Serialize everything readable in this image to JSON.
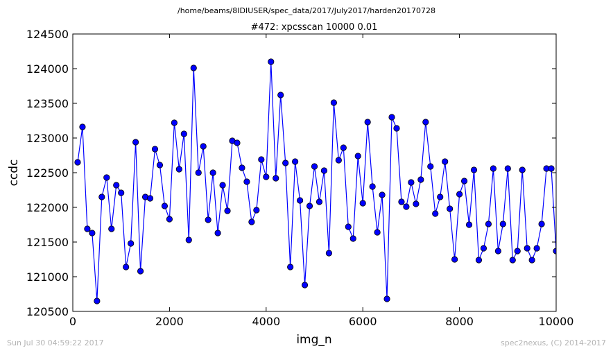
{
  "header": {
    "path": "/home/beams/8IDIUSER/spec_data/2017/July2017/harden20170728",
    "title": "#472: xpcsscan 10000 0.01"
  },
  "footer": {
    "timestamp": "Sun Jul 30 04:59:22 2017",
    "credit": "spec2nexus, (C) 2014-2017"
  },
  "chart_data": {
    "type": "line",
    "title": "#472: xpcsscan 10000 0.01",
    "xlabel": "img_n",
    "ylabel": "ccdc",
    "xlim": [
      0,
      10000
    ],
    "ylim": [
      120500,
      124500
    ],
    "xticks": [
      0,
      2000,
      4000,
      6000,
      8000,
      10000
    ],
    "yticks": [
      120500,
      121000,
      121500,
      122000,
      122500,
      123000,
      123500,
      124000,
      124500
    ],
    "grid": false,
    "marker": "circle",
    "color": "#0000ff",
    "series": [
      {
        "x": [
          100,
          200,
          300,
          400,
          500,
          600,
          700,
          800,
          900,
          1000,
          1100,
          1200,
          1300,
          1400,
          1500,
          1600,
          1700,
          1800,
          1900,
          2000,
          2100,
          2200,
          2300,
          2400,
          2500,
          2600,
          2700,
          2800,
          2900,
          3000,
          3100,
          3200,
          3300,
          3400,
          3500,
          3600,
          3700,
          3800,
          3900,
          4000,
          4100,
          4200,
          4300,
          4400,
          4500,
          4600,
          4700,
          4800,
          4900,
          5000,
          5100,
          5200,
          5300,
          5400,
          5500,
          5600,
          5700,
          5800,
          5900,
          6000,
          6100,
          6200,
          6300,
          6400,
          6500,
          6600,
          6700,
          6800,
          6900,
          7000,
          7100,
          7200,
          7300,
          7400,
          7500,
          7600,
          7700,
          7800,
          7900,
          8000,
          8100,
          8200,
          8300,
          8400,
          8500,
          8600,
          8700,
          8800,
          8900,
          9000,
          9100,
          9200,
          9300,
          9400,
          9500,
          9600,
          9700,
          9800,
          9900,
          10000
        ],
        "y": [
          122650,
          123160,
          121690,
          121630,
          120650,
          122150,
          122430,
          121690,
          122320,
          122210,
          121140,
          121480,
          122940,
          121080,
          122150,
          122130,
          122840,
          122610,
          122020,
          121830,
          123220,
          122550,
          123060,
          121530,
          124010,
          122500,
          122880,
          121820,
          122500,
          121630,
          122320,
          121950,
          122960,
          122930,
          122570,
          122370,
          121790,
          121960,
          122690,
          122440,
          124100,
          122420,
          123620,
          122640,
          121140,
          122660,
          122100,
          120880,
          122020,
          122590,
          122080,
          122530,
          121340,
          123510,
          122680,
          122860,
          121720,
          121550,
          122740,
          122060,
          123230,
          122300,
          121640,
          122180,
          120680,
          123300,
          123140,
          122080,
          122010,
          122360,
          122050,
          122400,
          123230,
          122590,
          121910,
          122150,
          122660,
          121980,
          121250,
          122190,
          122380,
          121750,
          122540,
          121240,
          121410,
          121760,
          122560,
          121370,
          121760,
          122560,
          121240,
          121370,
          122540,
          121410,
          121240,
          121410,
          121760,
          122560,
          122560,
          121370
        ]
      }
    ]
  }
}
